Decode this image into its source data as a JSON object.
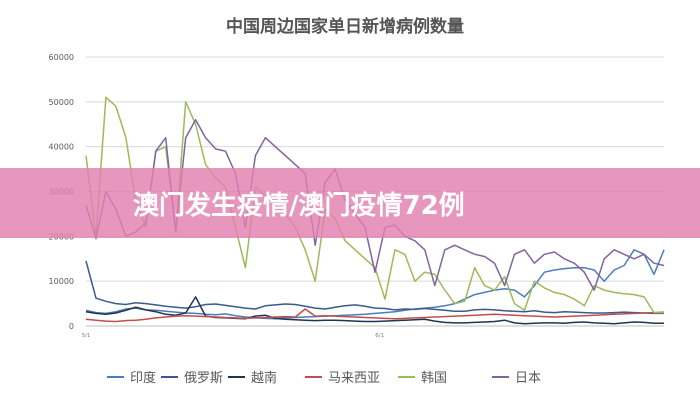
{
  "chart_data": {
    "type": "line",
    "title": "中国周边国家单日新增病例数量",
    "xlabel": "",
    "ylabel": "",
    "x_tick_labels": [
      "5/1",
      "6/1"
    ],
    "x_range": [
      1,
      62
    ],
    "ylim": [
      0,
      60000
    ],
    "yticks": [
      0,
      10000,
      20000,
      30000,
      40000,
      50000,
      60000
    ],
    "ytick_labels": [
      "0",
      "10000",
      "20000",
      "30000",
      "40000",
      "50000",
      "60000"
    ],
    "grid": "horizontal",
    "legend_position": "bottom",
    "series": [
      {
        "name": "印度",
        "color": "#4a7ebb",
        "values": [
          3500,
          3000,
          2800,
          3200,
          3800,
          4000,
          3600,
          3500,
          3300,
          3100,
          2900,
          2800,
          2600,
          2500,
          2700,
          2300,
          2000,
          1800,
          1700,
          1600,
          1800,
          1900,
          2000,
          2100,
          2200,
          2300,
          2400,
          2500,
          2600,
          2800,
          3000,
          3200,
          3500,
          3800,
          4000,
          4200,
          4500,
          5000,
          6000,
          7000,
          7500,
          8000,
          8300,
          8000,
          6500,
          9000,
          12000,
          12500,
          12800,
          13000,
          13000,
          12500,
          10000,
          12500,
          13500,
          17000,
          16000,
          11500,
          17000
        ]
      },
      {
        "name": "俄罗斯",
        "color": "#3b5b8c",
        "values": [
          14500,
          6200,
          5500,
          5000,
          4800,
          5200,
          5000,
          4700,
          4400,
          4200,
          4000,
          4300,
          4800,
          4900,
          4600,
          4300,
          4000,
          3800,
          4500,
          4700,
          4900,
          4800,
          4400,
          4000,
          3800,
          4200,
          4500,
          4700,
          4400,
          4000,
          3900,
          3600,
          3800,
          3700,
          3900,
          3700,
          3500,
          3300,
          3300,
          3600,
          3700,
          3600,
          3400,
          3300,
          3200,
          3400,
          3100,
          3000,
          3200,
          3100,
          3000,
          2900,
          2900,
          3000,
          3100,
          3000,
          2900,
          2800,
          2800
        ]
      },
      {
        "name": "越南",
        "color": "#1f3552",
        "values": [
          3200,
          2800,
          2600,
          2900,
          3500,
          4200,
          3600,
          3200,
          2600,
          2400,
          2900,
          6500,
          2200,
          1900,
          1800,
          1700,
          1600,
          2200,
          2400,
          1700,
          1500,
          1400,
          1300,
          1200,
          1300,
          1300,
          1200,
          1100,
          1000,
          1000,
          1100,
          1200,
          1300,
          1400,
          1500,
          1100,
          800,
          700,
          700,
          800,
          900,
          1000,
          1300,
          700,
          500,
          600,
          700,
          700,
          600,
          800,
          900,
          700,
          600,
          500,
          700,
          900,
          800,
          600,
          600
        ]
      },
      {
        "name": "马来西亚",
        "color": "#c0504d",
        "values": [
          1500,
          1300,
          1100,
          1000,
          1200,
          1300,
          1500,
          1800,
          2000,
          2200,
          2300,
          2200,
          2100,
          2000,
          1900,
          1800,
          1700,
          1800,
          1900,
          2000,
          2100,
          2000,
          3800,
          2200,
          2300,
          2200,
          2100,
          2000,
          1900,
          1800,
          1700,
          1600,
          1700,
          1800,
          1900,
          2000,
          2100,
          2200,
          2300,
          2400,
          2500,
          2600,
          2500,
          2400,
          2300,
          2200,
          2100,
          2000,
          2100,
          2200,
          2300,
          2400,
          2500,
          2600,
          2700,
          2800,
          2900,
          3000,
          3100
        ]
      },
      {
        "name": "韩国",
        "color": "#9bbb59",
        "values": [
          38000,
          20000,
          51000,
          49000,
          42000,
          28000,
          22000,
          39000,
          40000,
          21000,
          50000,
          45000,
          36000,
          33000,
          31000,
          22000,
          13000,
          31000,
          29000,
          27000,
          25000,
          22000,
          17000,
          10000,
          26000,
          24000,
          19000,
          17000,
          15000,
          13000,
          6000,
          17000,
          16000,
          10000,
          12000,
          11500,
          8000,
          5000,
          5500,
          13000,
          9000,
          8000,
          11000,
          5000,
          3500,
          10000,
          8500,
          7500,
          7000,
          6000,
          4500,
          9000,
          8000,
          7500,
          7200,
          7000,
          6500,
          3000,
          3000
        ]
      },
      {
        "name": "日本",
        "color": "#8064a2",
        "values": [
          27000,
          19500,
          30000,
          26000,
          20000,
          21000,
          23000,
          39000,
          42000,
          21000,
          42000,
          46000,
          42000,
          39500,
          39000,
          34000,
          22000,
          38000,
          42000,
          40000,
          38000,
          36000,
          34000,
          18000,
          32000,
          35000,
          28000,
          25000,
          22000,
          12000,
          22000,
          22500,
          20000,
          19000,
          17000,
          9000,
          17000,
          18000,
          17000,
          16000,
          15500,
          14000,
          9000,
          16000,
          17000,
          14000,
          16000,
          16500,
          15000,
          14000,
          12000,
          8000,
          15000,
          17000,
          16000,
          15000,
          16000,
          14000,
          13500
        ]
      }
    ]
  },
  "watermark": {
    "text": "澳门发生疫情/澳门疫情72例"
  }
}
